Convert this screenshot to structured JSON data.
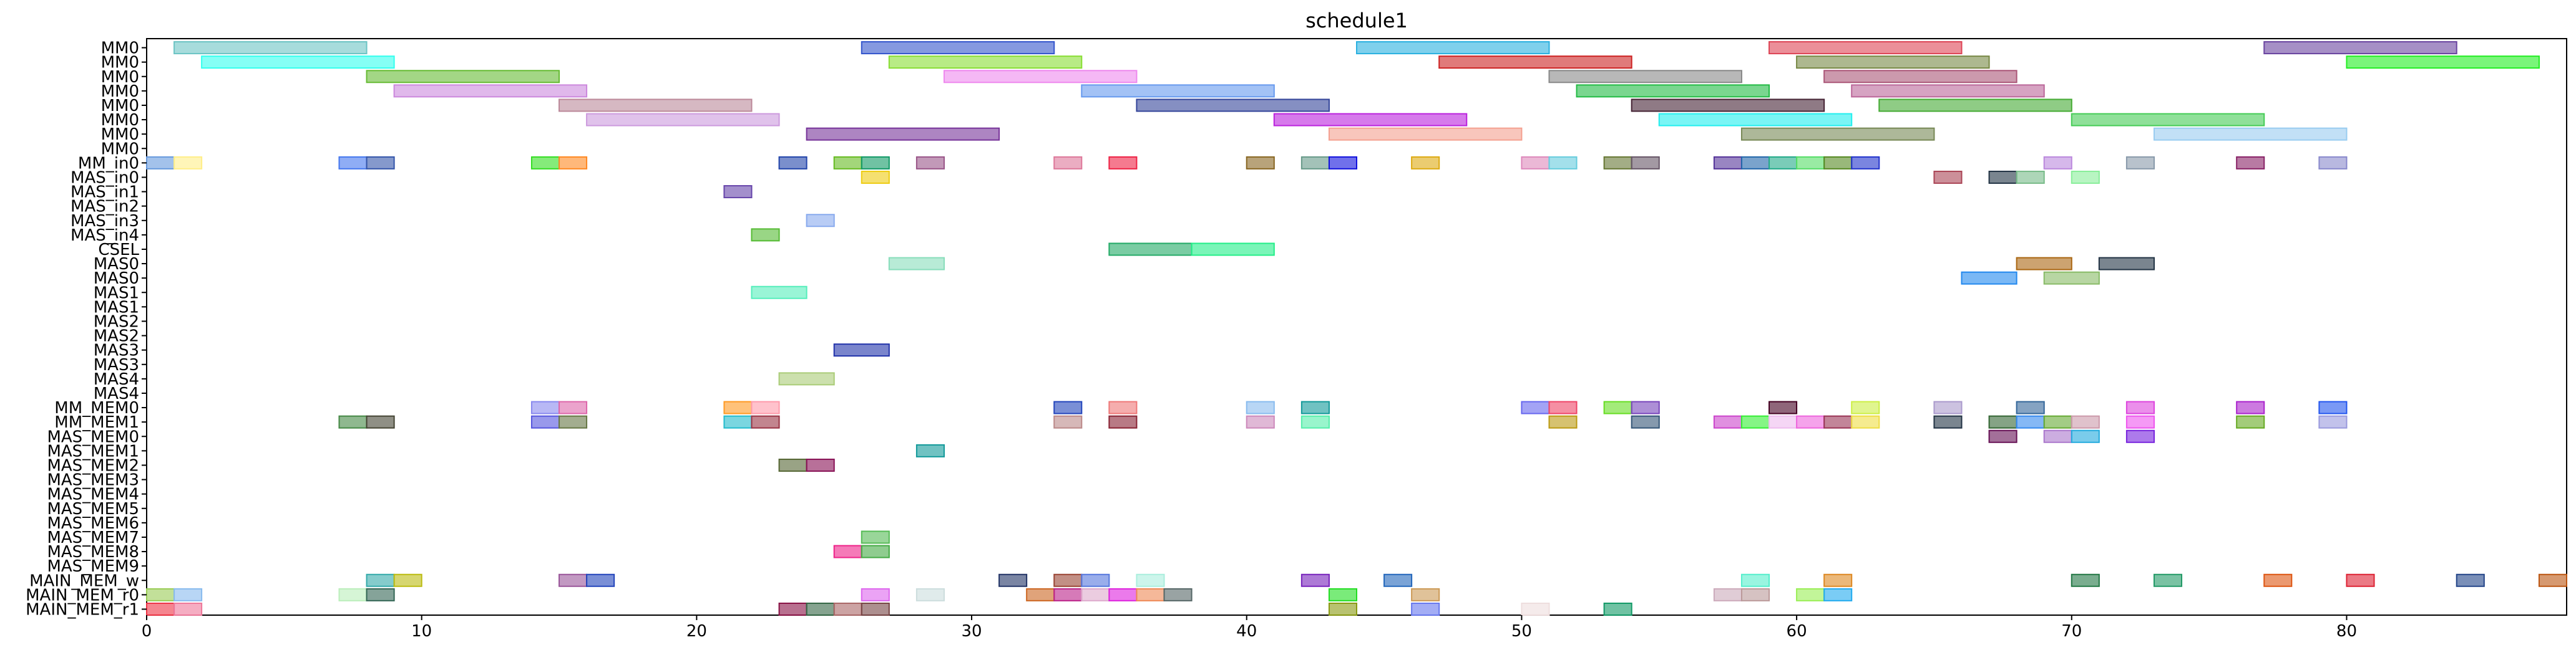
{
  "chart_data": {
    "type": "gantt",
    "title": "schedule1",
    "xlabel": "",
    "ylabel": "",
    "xlim": [
      0,
      88
    ],
    "xticks": [
      0,
      10,
      20,
      30,
      40,
      50,
      60,
      70,
      80
    ],
    "grid": false,
    "rows": [
      "MM0",
      "MM0",
      "MM0",
      "MM0",
      "MM0",
      "MM0",
      "MM0",
      "MM0",
      "MM_in0",
      "MAS_in0",
      "MAS_in1",
      "MAS_in2",
      "MAS_in3",
      "MAS_in4",
      "CSEL",
      "MAS0",
      "MAS0",
      "MAS1",
      "MAS1",
      "MAS2",
      "MAS2",
      "MAS3",
      "MAS3",
      "MAS4",
      "MAS4",
      "MM_MEM0",
      "MM_MEM1",
      "MAS_MEM0",
      "MAS_MEM1",
      "MAS_MEM2",
      "MAS_MEM3",
      "MAS_MEM4",
      "MAS_MEM5",
      "MAS_MEM6",
      "MAS_MEM7",
      "MAS_MEM8",
      "MAS_MEM9",
      "MAIN_MEM_w",
      "MAIN_MEM_r0",
      "MAIN_MEM_r1"
    ],
    "tasks": [
      {
        "row": 0,
        "start": 1,
        "end": 8,
        "color": "#6cc4c4"
      },
      {
        "row": 0,
        "start": 26,
        "end": 33,
        "color": "#3355cc"
      },
      {
        "row": 0,
        "start": 44,
        "end": 51,
        "color": "#2ab0e0"
      },
      {
        "row": 0,
        "start": 59,
        "end": 66,
        "color": "#dd4455"
      },
      {
        "row": 0,
        "start": 77,
        "end": 84,
        "color": "#6a44a0"
      },
      {
        "row": 1,
        "start": 2,
        "end": 9,
        "color": "#33ffee"
      },
      {
        "row": 1,
        "start": 27,
        "end": 34,
        "color": "#88dd33"
      },
      {
        "row": 1,
        "start": 47,
        "end": 54,
        "color": "#cc2222"
      },
      {
        "row": 1,
        "start": 60,
        "end": 67,
        "color": "#778844"
      },
      {
        "row": 1,
        "start": 80,
        "end": 87,
        "color": "#22ee22"
      },
      {
        "row": 2,
        "start": 8,
        "end": 15,
        "color": "#66bb33"
      },
      {
        "row": 2,
        "start": 29,
        "end": 36,
        "color": "#ee88ee"
      },
      {
        "row": 2,
        "start": 51,
        "end": 58,
        "color": "#888888"
      },
      {
        "row": 2,
        "start": 61,
        "end": 68,
        "color": "#aa5577"
      },
      {
        "row": 3,
        "start": 9,
        "end": 16,
        "color": "#cc88dd"
      },
      {
        "row": 3,
        "start": 34,
        "end": 41,
        "color": "#6699ee"
      },
      {
        "row": 3,
        "start": 52,
        "end": 59,
        "color": "#22bb44"
      },
      {
        "row": 3,
        "start": 62,
        "end": 69,
        "color": "#bb6699"
      },
      {
        "row": 4,
        "start": 15,
        "end": 22,
        "color": "#bb8899"
      },
      {
        "row": 4,
        "start": 36,
        "end": 43,
        "color": "#334499"
      },
      {
        "row": 4,
        "start": 54,
        "end": 61,
        "color": "#442233"
      },
      {
        "row": 4,
        "start": 63,
        "end": 70,
        "color": "#44aa33"
      },
      {
        "row": 5,
        "start": 16,
        "end": 23,
        "color": "#cc99dd"
      },
      {
        "row": 5,
        "start": 41,
        "end": 48,
        "color": "#bb22dd"
      },
      {
        "row": 5,
        "start": 55,
        "end": 62,
        "color": "#22eeee"
      },
      {
        "row": 5,
        "start": 70,
        "end": 77,
        "color": "#44cc55"
      },
      {
        "row": 6,
        "start": 24,
        "end": 31,
        "color": "#773399"
      },
      {
        "row": 6,
        "start": 43,
        "end": 50,
        "color": "#f4a090"
      },
      {
        "row": 6,
        "start": 58,
        "end": 65,
        "color": "#778855"
      },
      {
        "row": 6,
        "start": 73,
        "end": 80,
        "color": "#99ccf0"
      },
      {
        "row": 8,
        "start": 0,
        "end": 1,
        "color": "#6699dd"
      },
      {
        "row": 8,
        "start": 1,
        "end": 2,
        "color": "#ffee88"
      },
      {
        "row": 8,
        "start": 7,
        "end": 8,
        "color": "#4477ee"
      },
      {
        "row": 8,
        "start": 8,
        "end": 9,
        "color": "#3355aa"
      },
      {
        "row": 8,
        "start": 14,
        "end": 15,
        "color": "#33dd22"
      },
      {
        "row": 8,
        "start": 15,
        "end": 16,
        "color": "#ff8822"
      },
      {
        "row": 8,
        "start": 23,
        "end": 24,
        "color": "#2244aa"
      },
      {
        "row": 8,
        "start": 25,
        "end": 26,
        "color": "#66bb22"
      },
      {
        "row": 8,
        "start": 26,
        "end": 27,
        "color": "#119966"
      },
      {
        "row": 8,
        "start": 28,
        "end": 29,
        "color": "#995588"
      },
      {
        "row": 8,
        "start": 33,
        "end": 34,
        "color": "#dd7799"
      },
      {
        "row": 8,
        "start": 35,
        "end": 36,
        "color": "#ee2244"
      },
      {
        "row": 8,
        "start": 40,
        "end": 41,
        "color": "#886622"
      },
      {
        "row": 8,
        "start": 42,
        "end": 43,
        "color": "#669988"
      },
      {
        "row": 8,
        "start": 43,
        "end": 44,
        "color": "#1111dd"
      },
      {
        "row": 8,
        "start": 46,
        "end": 47,
        "color": "#ddaa11"
      },
      {
        "row": 8,
        "start": 50,
        "end": 51,
        "color": "#dd88bb"
      },
      {
        "row": 8,
        "start": 51,
        "end": 52,
        "color": "#66ccdd"
      },
      {
        "row": 8,
        "start": 53,
        "end": 54,
        "color": "#667733"
      },
      {
        "row": 8,
        "start": 54,
        "end": 55,
        "color": "#665566"
      },
      {
        "row": 8,
        "start": 57,
        "end": 58,
        "color": "#553399"
      },
      {
        "row": 8,
        "start": 58,
        "end": 59,
        "color": "#2266aa"
      },
      {
        "row": 8,
        "start": 59,
        "end": 60,
        "color": "#22aa88"
      },
      {
        "row": 8,
        "start": 60,
        "end": 61,
        "color": "#55dd66"
      },
      {
        "row": 8,
        "start": 61,
        "end": 62,
        "color": "#558822"
      },
      {
        "row": 8,
        "start": 62,
        "end": 63,
        "color": "#2233cc"
      },
      {
        "row": 8,
        "start": 69,
        "end": 70,
        "color": "#bb88dd"
      },
      {
        "row": 8,
        "start": 72,
        "end": 73,
        "color": "#8899aa"
      },
      {
        "row": 8,
        "start": 76,
        "end": 77,
        "color": "#882266"
      },
      {
        "row": 8,
        "start": 79,
        "end": 80,
        "color": "#8888cc"
      },
      {
        "row": 9,
        "start": 26,
        "end": 27,
        "color": "#eecc11"
      },
      {
        "row": 9,
        "start": 65,
        "end": 66,
        "color": "#aa4455"
      },
      {
        "row": 9,
        "start": 67,
        "end": 68,
        "color": "#223344"
      },
      {
        "row": 9,
        "start": 68,
        "end": 69,
        "color": "#77bb88"
      },
      {
        "row": 9,
        "start": 70,
        "end": 71,
        "color": "#88ee99"
      },
      {
        "row": 10,
        "start": 21,
        "end": 22,
        "color": "#6644aa"
      },
      {
        "row": 12,
        "start": 24,
        "end": 25,
        "color": "#88aaee"
      },
      {
        "row": 13,
        "start": 22,
        "end": 23,
        "color": "#55bb33"
      },
      {
        "row": 14,
        "start": 35,
        "end": 38,
        "color": "#22aa66"
      },
      {
        "row": 14,
        "start": 38,
        "end": 41,
        "color": "#22ee88"
      },
      {
        "row": 15,
        "start": 27,
        "end": 29,
        "color": "#88ddbb"
      },
      {
        "row": 15,
        "start": 68,
        "end": 70,
        "color": "#aa6611"
      },
      {
        "row": 15,
        "start": 71,
        "end": 73,
        "color": "#223344"
      },
      {
        "row": 16,
        "start": 66,
        "end": 68,
        "color": "#2288ee"
      },
      {
        "row": 16,
        "start": 69,
        "end": 71,
        "color": "#88bb66"
      },
      {
        "row": 17,
        "start": 22,
        "end": 24,
        "color": "#55eebb"
      },
      {
        "row": 21,
        "start": 25,
        "end": 27,
        "color": "#2233aa"
      },
      {
        "row": 23,
        "start": 23,
        "end": 25,
        "color": "#aacc77"
      },
      {
        "row": 25,
        "start": 14,
        "end": 15,
        "color": "#8888ee"
      },
      {
        "row": 25,
        "start": 15,
        "end": 16,
        "color": "#dd66aa"
      },
      {
        "row": 25,
        "start": 21,
        "end": 22,
        "color": "#ff9922"
      },
      {
        "row": 25,
        "start": 22,
        "end": 23,
        "color": "#ff99aa"
      },
      {
        "row": 25,
        "start": 33,
        "end": 34,
        "color": "#2244bb"
      },
      {
        "row": 25,
        "start": 35,
        "end": 36,
        "color": "#ee7777"
      },
      {
        "row": 25,
        "start": 40,
        "end": 41,
        "color": "#88bbee"
      },
      {
        "row": 25,
        "start": 42,
        "end": 43,
        "color": "#119999"
      },
      {
        "row": 25,
        "start": 50,
        "end": 51,
        "color": "#6666ee"
      },
      {
        "row": 25,
        "start": 51,
        "end": 52,
        "color": "#ee4466"
      },
      {
        "row": 25,
        "start": 53,
        "end": 54,
        "color": "#66dd22"
      },
      {
        "row": 25,
        "start": 54,
        "end": 55,
        "color": "#7744bb"
      },
      {
        "row": 25,
        "start": 59,
        "end": 60,
        "color": "#440022"
      },
      {
        "row": 25,
        "start": 62,
        "end": 63,
        "color": "#ccee44"
      },
      {
        "row": 25,
        "start": 65,
        "end": 66,
        "color": "#aa99cc"
      },
      {
        "row": 25,
        "start": 68,
        "end": 69,
        "color": "#336699"
      },
      {
        "row": 25,
        "start": 72,
        "end": 73,
        "color": "#dd44dd"
      },
      {
        "row": 25,
        "start": 76,
        "end": 77,
        "color": "#aa22cc"
      },
      {
        "row": 25,
        "start": 79,
        "end": 80,
        "color": "#2255ee"
      },
      {
        "row": 26,
        "start": 7,
        "end": 8,
        "color": "#448844"
      },
      {
        "row": 26,
        "start": 8,
        "end": 9,
        "color": "#444433"
      },
      {
        "row": 26,
        "start": 14,
        "end": 15,
        "color": "#5555dd"
      },
      {
        "row": 26,
        "start": 15,
        "end": 16,
        "color": "#667744"
      },
      {
        "row": 26,
        "start": 21,
        "end": 22,
        "color": "#22bbcc"
      },
      {
        "row": 26,
        "start": 22,
        "end": 23,
        "color": "#993344"
      },
      {
        "row": 26,
        "start": 33,
        "end": 34,
        "color": "#bb8888"
      },
      {
        "row": 26,
        "start": 35,
        "end": 36,
        "color": "#882233"
      },
      {
        "row": 26,
        "start": 40,
        "end": 41,
        "color": "#cc88bb"
      },
      {
        "row": 26,
        "start": 42,
        "end": 43,
        "color": "#55eeaa"
      },
      {
        "row": 26,
        "start": 51,
        "end": 52,
        "color": "#bb9911"
      },
      {
        "row": 26,
        "start": 54,
        "end": 55,
        "color": "#335577"
      },
      {
        "row": 26,
        "start": 57,
        "end": 58,
        "color": "#cc44cc"
      },
      {
        "row": 26,
        "start": 58,
        "end": 59,
        "color": "#33ee33"
      },
      {
        "row": 26,
        "start": 59,
        "end": 60,
        "color": "#eebbee"
      },
      {
        "row": 26,
        "start": 60,
        "end": 61,
        "color": "#ee66dd"
      },
      {
        "row": 26,
        "start": 61,
        "end": 62,
        "color": "#993355"
      },
      {
        "row": 26,
        "start": 62,
        "end": 63,
        "color": "#eedd44"
      },
      {
        "row": 26,
        "start": 65,
        "end": 66,
        "color": "#223344"
      },
      {
        "row": 26,
        "start": 67,
        "end": 68,
        "color": "#336633"
      },
      {
        "row": 26,
        "start": 68,
        "end": 69,
        "color": "#3388ee"
      },
      {
        "row": 26,
        "start": 69,
        "end": 70,
        "color": "#66aa33"
      },
      {
        "row": 26,
        "start": 70,
        "end": 71,
        "color": "#cc99aa"
      },
      {
        "row": 26,
        "start": 72,
        "end": 73,
        "color": "#ee55ee"
      },
      {
        "row": 26,
        "start": 76,
        "end": 77,
        "color": "#66aa22"
      },
      {
        "row": 26,
        "start": 79,
        "end": 80,
        "color": "#9999dd"
      },
      {
        "row": 27,
        "start": 67,
        "end": 68,
        "color": "#661155"
      },
      {
        "row": 27,
        "start": 69,
        "end": 70,
        "color": "#aa77cc"
      },
      {
        "row": 27,
        "start": 70,
        "end": 71,
        "color": "#22aadd"
      },
      {
        "row": 27,
        "start": 72,
        "end": 73,
        "color": "#7722dd"
      },
      {
        "row": 28,
        "start": 28,
        "end": 29,
        "color": "#119999"
      },
      {
        "row": 29,
        "start": 23,
        "end": 24,
        "color": "#556633"
      },
      {
        "row": 29,
        "start": 24,
        "end": 25,
        "color": "#881155"
      },
      {
        "row": 34,
        "start": 26,
        "end": 27,
        "color": "#55bb55"
      },
      {
        "row": 35,
        "start": 25,
        "end": 26,
        "color": "#ee2288"
      },
      {
        "row": 35,
        "start": 26,
        "end": 27,
        "color": "#44aa44"
      },
      {
        "row": 37,
        "start": 8,
        "end": 9,
        "color": "#33aaaa"
      },
      {
        "row": 37,
        "start": 9,
        "end": 10,
        "color": "#bbbb11"
      },
      {
        "row": 37,
        "start": 15,
        "end": 16,
        "color": "#995599"
      },
      {
        "row": 37,
        "start": 16,
        "end": 17,
        "color": "#2244bb"
      },
      {
        "row": 37,
        "start": 31,
        "end": 32,
        "color": "#223366"
      },
      {
        "row": 37,
        "start": 33,
        "end": 34,
        "color": "#994433"
      },
      {
        "row": 37,
        "start": 34,
        "end": 35,
        "color": "#5577dd"
      },
      {
        "row": 37,
        "start": 36,
        "end": 37,
        "color": "#aaeedd"
      },
      {
        "row": 37,
        "start": 42,
        "end": 43,
        "color": "#7722bb"
      },
      {
        "row": 37,
        "start": 45,
        "end": 46,
        "color": "#2266bb"
      },
      {
        "row": 37,
        "start": 58,
        "end": 59,
        "color": "#55eecc"
      },
      {
        "row": 37,
        "start": 61,
        "end": 62,
        "color": "#dd8822"
      },
      {
        "row": 37,
        "start": 70,
        "end": 71,
        "color": "#227744"
      },
      {
        "row": 37,
        "start": 73,
        "end": 74,
        "color": "#229966"
      },
      {
        "row": 37,
        "start": 77,
        "end": 78,
        "color": "#dd5511"
      },
      {
        "row": 37,
        "start": 80,
        "end": 81,
        "color": "#dd2233"
      },
      {
        "row": 37,
        "start": 84,
        "end": 85,
        "color": "#224488"
      },
      {
        "row": 37,
        "start": 87,
        "end": 88,
        "color": "#bb5511"
      },
      {
        "row": 38,
        "start": 0,
        "end": 1,
        "color": "#99cc55"
      },
      {
        "row": 38,
        "start": 1,
        "end": 2,
        "color": "#88bbee"
      },
      {
        "row": 38,
        "start": 7,
        "end": 8,
        "color": "#bbeebb"
      },
      {
        "row": 38,
        "start": 8,
        "end": 9,
        "color": "#336655"
      },
      {
        "row": 38,
        "start": 26,
        "end": 27,
        "color": "#dd66ee"
      },
      {
        "row": 38,
        "start": 28,
        "end": 29,
        "color": "#ccdddd"
      },
      {
        "row": 38,
        "start": 32,
        "end": 33,
        "color": "#cc6622"
      },
      {
        "row": 38,
        "start": 33,
        "end": 34,
        "color": "#bb2288"
      },
      {
        "row": 38,
        "start": 34,
        "end": 35,
        "color": "#ddaacc"
      },
      {
        "row": 38,
        "start": 35,
        "end": 36,
        "color": "#dd22dd"
      },
      {
        "row": 38,
        "start": 36,
        "end": 37,
        "color": "#ee8855"
      },
      {
        "row": 38,
        "start": 37,
        "end": 38,
        "color": "#556666"
      },
      {
        "row": 38,
        "start": 43,
        "end": 44,
        "color": "#22dd22"
      },
      {
        "row": 38,
        "start": 46,
        "end": 47,
        "color": "#cc9955"
      },
      {
        "row": 38,
        "start": 57,
        "end": 58,
        "color": "#ccaabb"
      },
      {
        "row": 38,
        "start": 58,
        "end": 59,
        "color": "#bb9999"
      },
      {
        "row": 38,
        "start": 60,
        "end": 61,
        "color": "#99ee55"
      },
      {
        "row": 38,
        "start": 61,
        "end": 62,
        "color": "#22aaee"
      },
      {
        "row": 39,
        "start": 0,
        "end": 1,
        "color": "#ee3344"
      },
      {
        "row": 39,
        "start": 1,
        "end": 2,
        "color": "#ee7799"
      },
      {
        "row": 39,
        "start": 23,
        "end": 24,
        "color": "#881144"
      },
      {
        "row": 39,
        "start": 24,
        "end": 25,
        "color": "#336644"
      },
      {
        "row": 39,
        "start": 25,
        "end": 26,
        "color": "#aa6666"
      },
      {
        "row": 39,
        "start": 26,
        "end": 27,
        "color": "#774444"
      },
      {
        "row": 39,
        "start": 43,
        "end": 44,
        "color": "#889911"
      },
      {
        "row": 39,
        "start": 46,
        "end": 47,
        "color": "#6677ee"
      },
      {
        "row": 39,
        "start": 50,
        "end": 51,
        "color": "#eedddd"
      },
      {
        "row": 39,
        "start": 53,
        "end": 54,
        "color": "#119966"
      }
    ]
  }
}
